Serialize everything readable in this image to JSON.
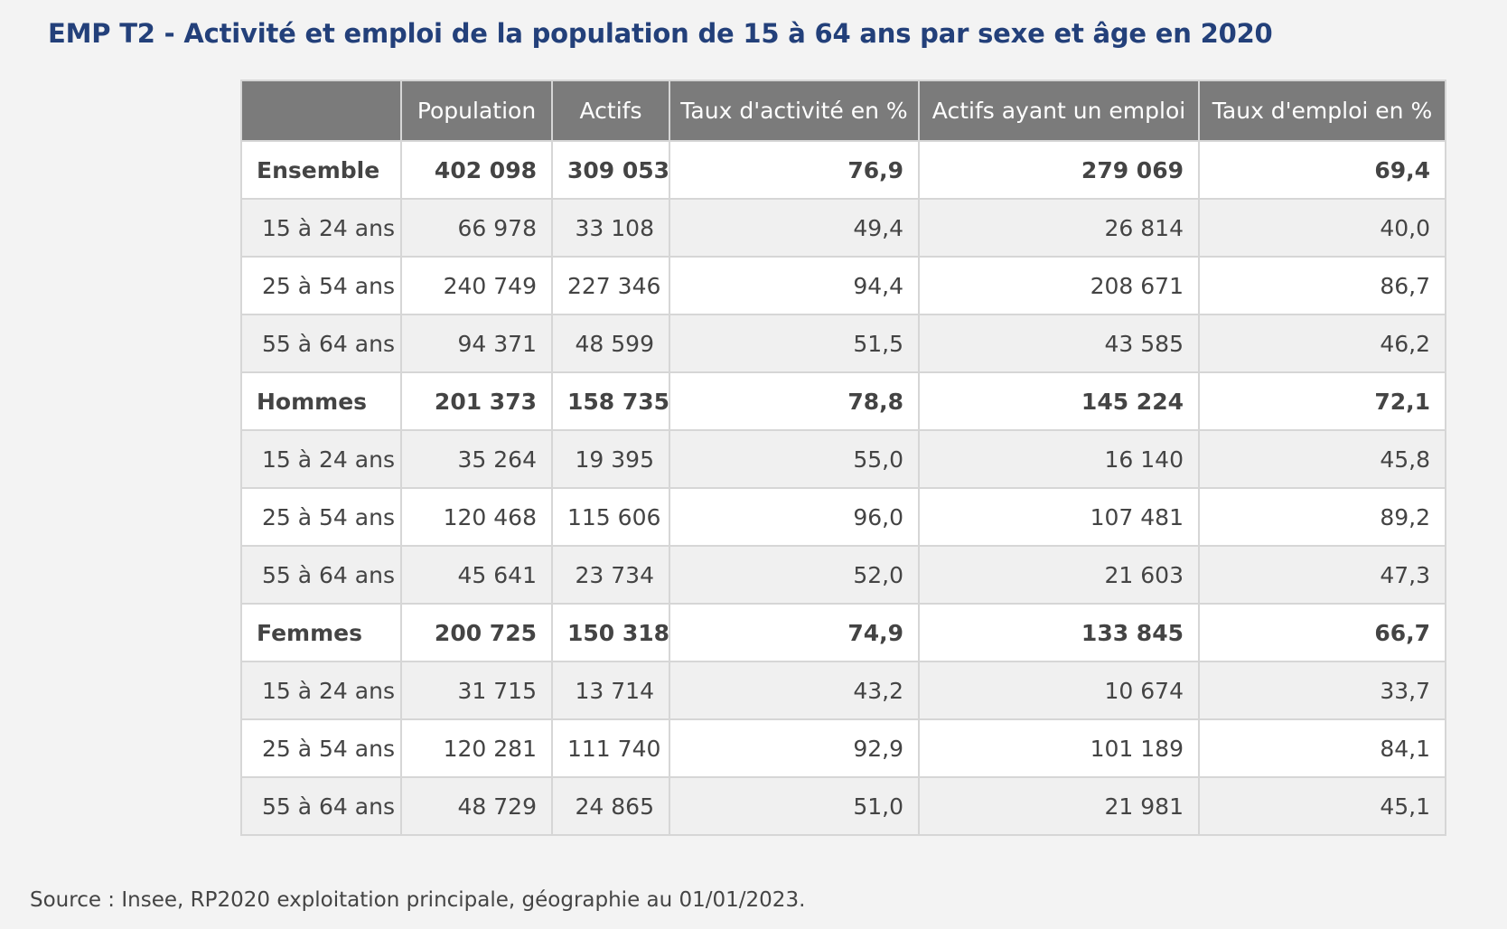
{
  "title": "EMP T2 - Activité et emploi de la population de 15 à 64 ans par sexe et âge en 2020",
  "table": {
    "headers": [
      "",
      "Population",
      "Actifs",
      "Taux d'activité en %",
      "Actifs ayant un emploi",
      "Taux d'emploi en %"
    ],
    "rows": [
      {
        "kind": "group",
        "cells": [
          "Ensemble",
          "402 098",
          "309 053",
          "76,9",
          "279 069",
          "69,4"
        ]
      },
      {
        "kind": "sub",
        "cells": [
          "15 à 24 ans",
          "66 978",
          "33 108",
          "49,4",
          "26 814",
          "40,0"
        ]
      },
      {
        "kind": "sub",
        "cells": [
          "25 à 54 ans",
          "240 749",
          "227 346",
          "94,4",
          "208 671",
          "86,7"
        ]
      },
      {
        "kind": "sub",
        "cells": [
          "55 à 64 ans",
          "94 371",
          "48 599",
          "51,5",
          "43 585",
          "46,2"
        ]
      },
      {
        "kind": "group",
        "cells": [
          "Hommes",
          "201 373",
          "158 735",
          "78,8",
          "145 224",
          "72,1"
        ]
      },
      {
        "kind": "sub",
        "cells": [
          "15 à 24 ans",
          "35 264",
          "19 395",
          "55,0",
          "16 140",
          "45,8"
        ]
      },
      {
        "kind": "sub",
        "cells": [
          "25 à 54 ans",
          "120 468",
          "115 606",
          "96,0",
          "107 481",
          "89,2"
        ]
      },
      {
        "kind": "sub",
        "cells": [
          "55 à 64 ans",
          "45 641",
          "23 734",
          "52,0",
          "21 603",
          "47,3"
        ]
      },
      {
        "kind": "group",
        "cells": [
          "Femmes",
          "200 725",
          "150 318",
          "74,9",
          "133 845",
          "66,7"
        ]
      },
      {
        "kind": "sub",
        "cells": [
          "15 à 24 ans",
          "31 715",
          "13 714",
          "43,2",
          "10 674",
          "33,7"
        ]
      },
      {
        "kind": "sub",
        "cells": [
          "25 à 54 ans",
          "120 281",
          "111 740",
          "92,9",
          "101 189",
          "84,1"
        ]
      },
      {
        "kind": "sub",
        "cells": [
          "55 à 64 ans",
          "48 729",
          "24 865",
          "51,0",
          "21 981",
          "45,1"
        ]
      }
    ]
  },
  "source": "Source : Insee, RP2020 exploitation principale, géographie au 01/01/2023.",
  "colors": {
    "title": "#23407a",
    "header_bg": "#7b7b7b",
    "row_alt_bg": "#f0f0f0",
    "page_bg": "#f3f3f3"
  }
}
